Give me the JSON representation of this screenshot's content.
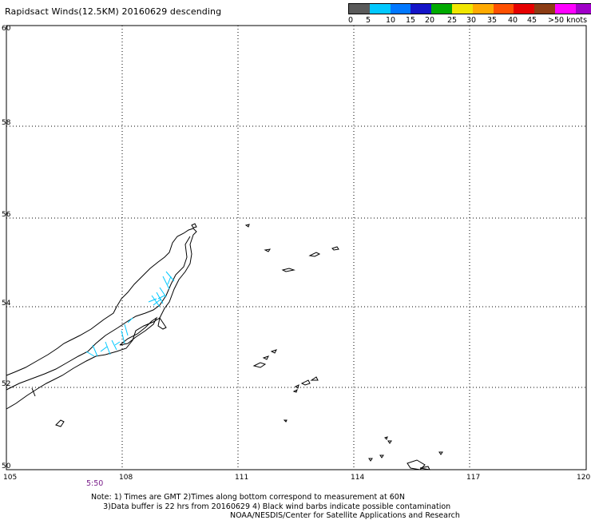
{
  "title": "Rapidsact Winds(12.5KM) 20160629 descending",
  "legend": {
    "colors": [
      "#5a5a5a",
      "#00c8ff",
      "#0078ff",
      "#1414c8",
      "#00aa00",
      "#f0e600",
      "#ffaa00",
      "#ff5000",
      "#e60000",
      "#8c3c14",
      "#ff00ff",
      "#a000c8",
      "#3c005a"
    ],
    "labels": [
      "0",
      "5",
      "10",
      "15",
      "20",
      "25",
      "30",
      "35",
      "40",
      "45",
      ">50 knots"
    ]
  },
  "map": {
    "lon_ticks": [
      "105",
      "108",
      "111",
      "114",
      "117",
      "120"
    ],
    "lat_ticks": [
      "50",
      "52",
      "54",
      "56",
      "58",
      "60"
    ]
  },
  "time_label": "5:50",
  "notes": {
    "line1": "Note: 1) Times are GMT 2)Times along bottom correspond to measurement at 60N",
    "line2": "     3)Data buffer is 22 hrs from 20160629 4) Black wind barbs indicate possible contamination",
    "credit": "NOAA/NESDIS/Center for Satellite Applications and Research"
  },
  "wind_barbs": {
    "color": "#00c8ff"
  }
}
